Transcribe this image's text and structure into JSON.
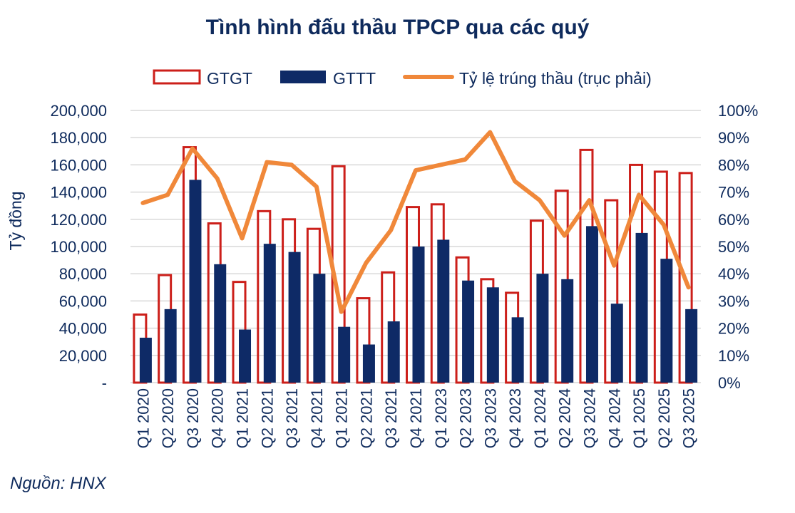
{
  "chart_data": {
    "type": "bar",
    "title": "Tình hình đấu thầu TPCP qua các quý",
    "ylabel": "Tỷ đồng",
    "y2label": "",
    "ylim": [
      0,
      200000
    ],
    "y2lim": [
      0,
      100
    ],
    "yticks": [
      "-",
      "20,000",
      "40,000",
      "60,000",
      "80,000",
      "100,000",
      "120,000",
      "140,000",
      "160,000",
      "180,000",
      "200,000"
    ],
    "y2ticks": [
      "0%",
      "10%",
      "20%",
      "30%",
      "40%",
      "50%",
      "60%",
      "70%",
      "80%",
      "90%",
      "100%"
    ],
    "categories": [
      "Q1 2020",
      "Q2 2020",
      "Q3 2020",
      "Q4 2020",
      "Q1 2021",
      "Q2 2021",
      "Q3 2021",
      "Q4 2021",
      "Q1 2021",
      "Q2 2021",
      "Q3 2021",
      "Q4 2021",
      "Q1 2023",
      "Q2 2023",
      "Q3 2023",
      "Q4 2023",
      "Q1 2024",
      "Q2 2024",
      "Q3 2024",
      "Q4 2024",
      "Q1 2025",
      "Q2 2025",
      "Q3 2025"
    ],
    "legend_position": "top",
    "series": [
      {
        "name": "GTGT",
        "kind": "bar-outline",
        "color": "#cc1f1a",
        "values": [
          50000,
          79000,
          173000,
          117000,
          74000,
          126000,
          120000,
          113000,
          159000,
          62000,
          81000,
          129000,
          131000,
          92000,
          76000,
          66000,
          119000,
          141000,
          171000,
          134000,
          160000,
          155000,
          154000
        ]
      },
      {
        "name": "GTTT",
        "kind": "bar",
        "color": "#0e2a66",
        "values": [
          33000,
          54000,
          149000,
          87000,
          39000,
          102000,
          96000,
          80000,
          41000,
          28000,
          45000,
          100000,
          105000,
          75000,
          70000,
          48000,
          80000,
          76000,
          115000,
          58000,
          110000,
          91000,
          54000
        ]
      },
      {
        "name": "Tỷ lệ trúng thầu (trục phải)",
        "kind": "line",
        "axis": "right",
        "color": "#f0883a",
        "values": [
          66,
          69,
          86,
          75,
          53,
          81,
          80,
          72,
          26,
          44,
          56,
          78,
          80,
          82,
          92,
          74,
          67,
          54,
          67,
          43,
          69,
          58,
          35
        ]
      }
    ]
  },
  "source": "Nguồn: HNX"
}
